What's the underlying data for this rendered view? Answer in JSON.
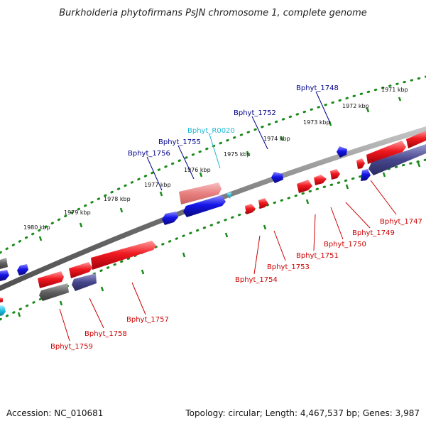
{
  "title": "Burkholderia phytofirmans PsJN chromosome 1, complete genome",
  "footer": {
    "accession": "Accession: NC_010681",
    "stats": "Topology: circular; Length: 4,467,537 bp; Genes: 3,987"
  },
  "colors": {
    "forward": "#e8101a",
    "reverse": "#1a16e0",
    "rna": "#1ab8e0",
    "pseudo_forward": "#5a5a5a",
    "pseudo_reverse": "#3a3a8a",
    "forward_label": "#cc0000",
    "reverse_label": "#00008b",
    "rna_label": "#20b8d8",
    "tick": "#1a8a1a",
    "backbone": "#7a7a7a"
  },
  "ruler": [
    "1971 kbp",
    "1972 kbp",
    "1973 kbp",
    "1974 kbp",
    "1975 kbp",
    "1976 kbp",
    "1977 kbp",
    "1978 kbp",
    "1979 kbp",
    "1980 kbp"
  ],
  "labels": {
    "top": [
      "Bphyt_1748",
      "Bphyt_1752",
      "Bphyt_R0020",
      "Bphyt_1755",
      "Bphyt_1756"
    ],
    "bottom": [
      "Bphyt_1747",
      "Bphyt_1749",
      "Bphyt_1750",
      "Bphyt_1751",
      "Bphyt_1753",
      "Bphyt_1754",
      "Bphyt_1757",
      "Bphyt_1758",
      "Bphyt_1759"
    ]
  }
}
